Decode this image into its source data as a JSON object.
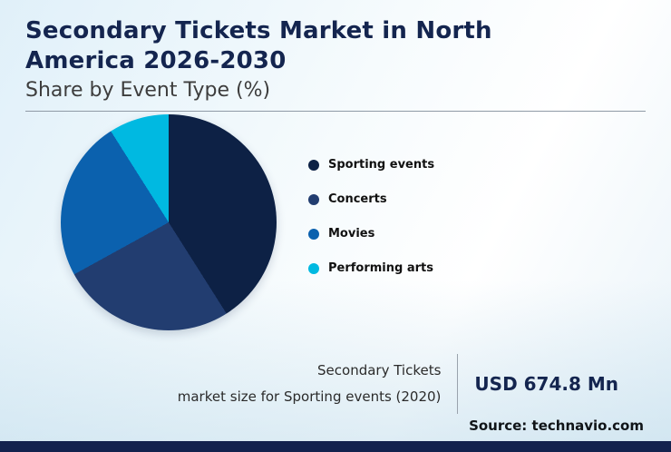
{
  "header": {
    "title": "Secondary Tickets Market in North America 2026-2030",
    "subtitle": "Share by Event Type (%)"
  },
  "chart_data": {
    "type": "pie",
    "title": "Secondary Tickets Market in North America 2026-2030",
    "subtitle": "Share by Event Type (%)",
    "unit": "%",
    "values_estimated": true,
    "start_angle_deg": 0,
    "direction": "clockwise",
    "legend_position": "right",
    "series": [
      {
        "name": "Sporting events",
        "value": 41,
        "color": "#0d2145"
      },
      {
        "name": "Concerts",
        "value": 26,
        "color": "#223d70"
      },
      {
        "name": "Movies",
        "value": 24,
        "color": "#0b61ae"
      },
      {
        "name": "Performing arts",
        "value": 9,
        "color": "#00b9e1"
      }
    ]
  },
  "stats": {
    "label_line1": "Secondary Tickets",
    "label_line2": "market size for Sporting events (2020)",
    "value": "USD 674.8 Mn"
  },
  "source": "Source: technavio.com",
  "colors": {
    "accent_navy": "#14254f",
    "bottom_bar": "#13224e"
  }
}
